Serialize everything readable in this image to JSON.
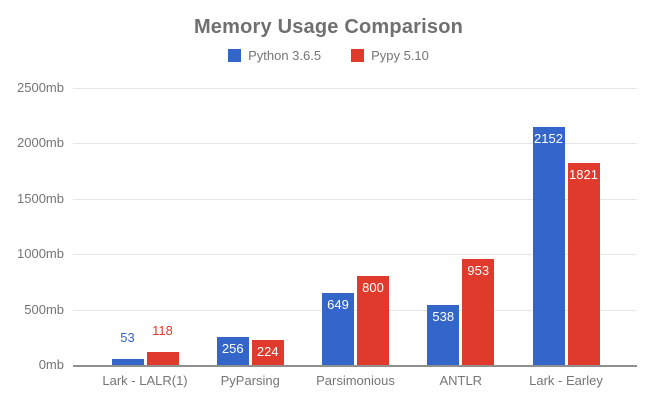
{
  "chart_data": {
    "type": "bar",
    "title": "Memory Usage Comparison",
    "categories": [
      "Lark - LALR(1)",
      "PyParsing",
      "Parsimonious",
      "ANTLR",
      "Lark - Earley"
    ],
    "series": [
      {
        "name": "Python 3.6.5",
        "color": "#3465c8",
        "values": [
          53,
          256,
          649,
          538,
          2152
        ]
      },
      {
        "name": "Pypy 5.10",
        "color": "#df3a2b",
        "values": [
          118,
          224,
          800,
          953,
          1821
        ]
      }
    ],
    "value_labels_shown": true,
    "y_axis": {
      "unit_suffix": "mb",
      "min": 0,
      "max": 2500,
      "tick_step": 500,
      "tick_labels": [
        "0mb",
        "500mb",
        "1000mb",
        "1500mb",
        "2000mb",
        "2500mb"
      ]
    },
    "grid": true,
    "legend_position": "top",
    "colors": {
      "background": "#ffffff",
      "title_text": "#707070",
      "axis_text": "#757575",
      "gridline": "#e6e6e6",
      "baseline": "#8f8f8f",
      "inside_label_text": "#ffffff"
    }
  }
}
